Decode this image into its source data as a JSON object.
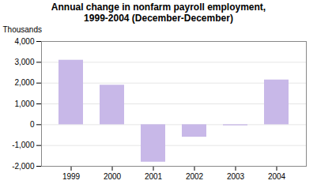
{
  "chart_data": {
    "type": "bar",
    "title": "Annual change in nonfarm payroll employment,\n1999-2004 (December-December)",
    "ylabel": "Thousands",
    "categories": [
      "1999",
      "2000",
      "2001",
      "2002",
      "2003",
      "2004"
    ],
    "values": [
      3100,
      1900,
      -1800,
      -600,
      -50,
      2150
    ],
    "color": "#c8b8e8",
    "ylim": [
      -2000,
      4000
    ],
    "yticks": [
      {
        "value": -2000,
        "label": "-2,000"
      },
      {
        "value": -1000,
        "label": "-1,000"
      },
      0,
      {
        "value": 1000,
        "label": "1,000"
      },
      {
        "value": 2000,
        "label": "2,000"
      },
      {
        "value": 3000,
        "label": "3,000"
      },
      {
        "value": 4000,
        "label": "4,000"
      }
    ],
    "grid": true
  }
}
